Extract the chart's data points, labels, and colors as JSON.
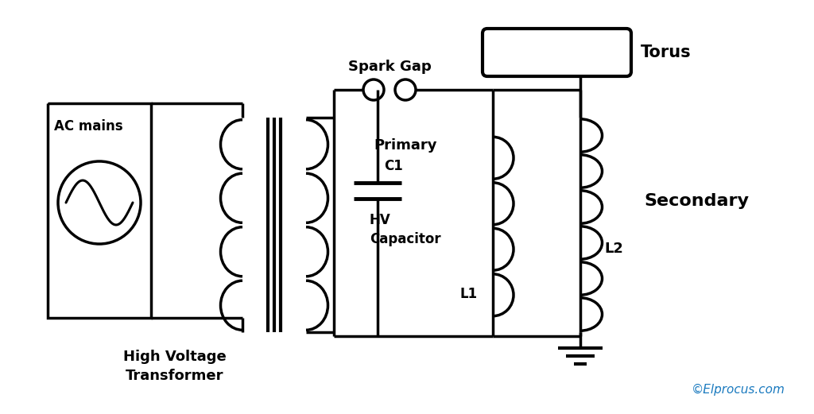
{
  "bg_color": "#ffffff",
  "line_color": "#000000",
  "copyright_color": "#1a7abf",
  "labels": {
    "ac_mains": "AC mains",
    "hv_transformer": "High Voltage\nTransformer",
    "spark_gap": "Spark Gap",
    "c1": "C1",
    "hv_capacitor": "HV\nCapacitor",
    "primary": "Primary",
    "l1": "L1",
    "secondary": "Secondary",
    "l2": "L2",
    "torus": "Torus",
    "copyright": "©Elprocus.com"
  },
  "figsize": [
    10.24,
    5.21
  ],
  "dpi": 100
}
